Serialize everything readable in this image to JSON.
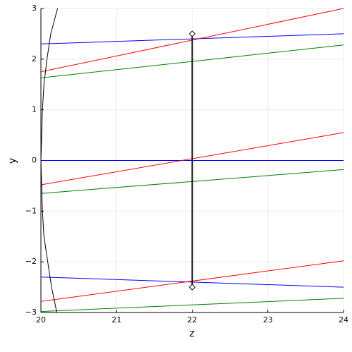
{
  "chart_data": {
    "type": "line",
    "xlabel": "z",
    "ylabel": "y",
    "xlim": [
      20,
      24
    ],
    "ylim": [
      -3,
      3
    ],
    "xticks": [
      20,
      21,
      22,
      23,
      24
    ],
    "yticks": [
      {
        "value": -3,
        "label": "−3"
      },
      {
        "value": -2,
        "label": "−2"
      },
      {
        "value": -1,
        "label": "−1"
      },
      0,
      1,
      2,
      3
    ],
    "grid": true,
    "series": [
      {
        "color": "#0000ff",
        "x": [
          20,
          24
        ],
        "values": [
          2.3,
          2.5
        ]
      },
      {
        "color": "#0000ff",
        "x": [
          20,
          24
        ],
        "values": [
          0,
          0
        ]
      },
      {
        "color": "#0000ff",
        "x": [
          20,
          24
        ],
        "values": [
          -2.3,
          -2.5
        ]
      },
      {
        "color": "#ff0000",
        "x": [
          20,
          24
        ],
        "values": [
          1.75,
          3.0
        ]
      },
      {
        "color": "#ff0000",
        "x": [
          20,
          24
        ],
        "values": [
          -0.48,
          0.55
        ]
      },
      {
        "color": "#ff0000",
        "x": [
          20,
          24
        ],
        "values": [
          -2.78,
          -1.98
        ]
      },
      {
        "color": "#008000",
        "x": [
          20,
          24
        ],
        "values": [
          1.63,
          2.28
        ]
      },
      {
        "color": "#008000",
        "x": [
          20,
          24
        ],
        "values": [
          -0.65,
          -0.18
        ]
      },
      {
        "color": "#008000",
        "x": [
          20,
          24
        ],
        "values": [
          -2.98,
          -2.72
        ]
      },
      {
        "color": "#000000",
        "x": [
          20.22,
          20.13,
          20.08,
          20.04,
          20.02,
          20.0,
          20.02,
          20.04,
          20.09,
          20.14,
          20.21
        ],
        "values": [
          3,
          2.5,
          2,
          1.5,
          1,
          0,
          -1,
          -1.5,
          -2,
          -2.5,
          -3
        ]
      },
      {
        "color": "#000000",
        "x": [
          22,
          22
        ],
        "values": [
          -2.5,
          2.5
        ],
        "marker": "diamond",
        "width": 2
      }
    ]
  }
}
